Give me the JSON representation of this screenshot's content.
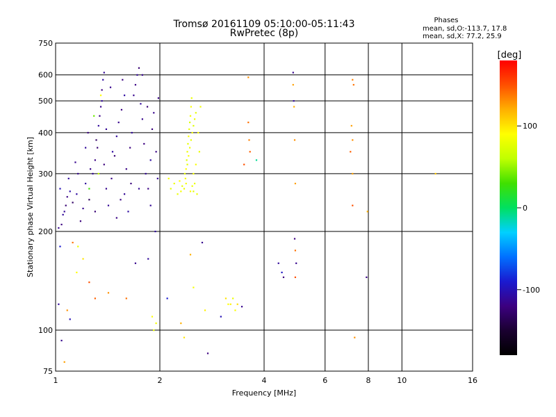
{
  "chart_data": {
    "type": "scatter",
    "title": "Tromsø 20161109 05:10:00-05:11:43",
    "subtitle": "RwPretec (8p)",
    "xlabel": "Frequency [MHz]",
    "ylabel": "Stationary phase Virtual Height [km]",
    "x_scale": "log",
    "y_scale": "log",
    "xlim": [
      1,
      16
    ],
    "ylim": [
      75,
      750
    ],
    "grid": true,
    "x_ticks": [
      1,
      2,
      4,
      6,
      8,
      10,
      16
    ],
    "x_tick_labels": [
      "1",
      "2",
      "4",
      "6",
      "8",
      "10",
      "16"
    ],
    "y_ticks": [
      75,
      100,
      200,
      300,
      400,
      500,
      600,
      750
    ],
    "y_tick_labels": [
      "75",
      "100",
      "200",
      "300",
      "400",
      "500",
      "600",
      "750"
    ],
    "stats": {
      "heading": "Phases",
      "line1": "mean, sd,O:-113.7, 17.8",
      "line2": "mean, sd,X:  77.2, 25.9"
    },
    "colorbar": {
      "label": "[deg]",
      "range": [
        -180,
        180
      ],
      "ticks": [
        100,
        0,
        -100
      ],
      "tick_labels": [
        "100",
        "0",
        "-100"
      ],
      "colors": [
        "#000000",
        "#1a0030",
        "#3c0080",
        "#1a1ad0",
        "#0070ff",
        "#00d0ff",
        "#00e060",
        "#40e000",
        "#c0ff00",
        "#ffff00",
        "#ffb000",
        "#ff5000",
        "#ff0000"
      ]
    },
    "series": [
      {
        "points": [
          [
            1.02,
            205,
            -115
          ],
          [
            1.04,
            210,
            -120
          ],
          [
            1.05,
            225,
            -110
          ],
          [
            1.07,
            240,
            -125
          ],
          [
            1.08,
            255,
            -118
          ],
          [
            1.1,
            265,
            -105
          ],
          [
            1.03,
            270,
            -100
          ],
          [
            1.06,
            230,
            -112
          ],
          [
            1.12,
            245,
            -130
          ],
          [
            1.15,
            260,
            -108
          ],
          [
            1.18,
            215,
            -122
          ],
          [
            1.2,
            235,
            -115
          ],
          [
            1.22,
            280,
            -110
          ],
          [
            1.25,
            250,
            -135
          ],
          [
            1.28,
            300,
            -112
          ],
          [
            1.3,
            330,
            -118
          ],
          [
            1.32,
            360,
            -125
          ],
          [
            1.33,
            420,
            -110
          ],
          [
            1.35,
            480,
            -115
          ],
          [
            1.36,
            540,
            -120
          ],
          [
            1.37,
            580,
            -108
          ],
          [
            1.38,
            610,
            -112
          ],
          [
            1.31,
            380,
            -130
          ],
          [
            1.34,
            450,
            -118
          ],
          [
            1.36,
            500,
            -110
          ],
          [
            1.38,
            320,
            -122
          ],
          [
            1.4,
            270,
            -115
          ],
          [
            1.42,
            240,
            -112
          ],
          [
            1.45,
            290,
            -118
          ],
          [
            1.48,
            340,
            -125
          ],
          [
            1.5,
            390,
            -110
          ],
          [
            1.52,
            430,
            -115
          ],
          [
            1.55,
            470,
            -120
          ],
          [
            1.58,
            260,
            -112
          ],
          [
            1.6,
            310,
            -118
          ],
          [
            1.62,
            230,
            -108
          ],
          [
            1.65,
            280,
            -122
          ],
          [
            1.68,
            520,
            -115
          ],
          [
            1.7,
            560,
            -118
          ],
          [
            1.72,
            600,
            -112
          ],
          [
            1.74,
            630,
            -125
          ],
          [
            1.76,
            490,
            -110
          ],
          [
            1.78,
            440,
            -115
          ],
          [
            1.8,
            370,
            -120
          ],
          [
            1.82,
            300,
            -112
          ],
          [
            1.85,
            270,
            -118
          ],
          [
            1.88,
            330,
            -108
          ],
          [
            1.9,
            410,
            -122
          ],
          [
            1.92,
            460,
            -115
          ],
          [
            1.95,
            350,
            -118
          ],
          [
            1.97,
            290,
            -112
          ],
          [
            1.44,
            550,
            -115
          ],
          [
            1.56,
            580,
            -120
          ],
          [
            1.66,
            400,
            -110
          ],
          [
            1.84,
            480,
            -125
          ],
          [
            1.26,
            310,
            -115
          ],
          [
            1.46,
            350,
            -108
          ],
          [
            1.64,
            360,
            -120
          ],
          [
            1.22,
            360,
            -110
          ],
          [
            1.4,
            410,
            -112
          ],
          [
            1.16,
            300,
            -115
          ],
          [
            1.54,
            250,
            -118
          ],
          [
            1.74,
            270,
            -112
          ],
          [
            1.3,
            230,
            -125
          ],
          [
            1.5,
            220,
            -118
          ],
          [
            1.09,
            290,
            -110
          ],
          [
            1.14,
            325,
            -115
          ],
          [
            1.24,
            400,
            -120
          ],
          [
            1.58,
            520,
            -108
          ],
          [
            1.78,
            600,
            -115
          ],
          [
            1.88,
            240,
            -112
          ],
          [
            1.94,
            200,
            -110
          ],
          [
            1.98,
            510,
            -118
          ],
          [
            1.29,
            450,
            40
          ],
          [
            1.35,
            520,
            90
          ],
          [
            1.33,
            300,
            60
          ],
          [
            1.25,
            270,
            30
          ]
        ]
      },
      {
        "points": [
          [
            2.35,
            270,
            80
          ],
          [
            2.37,
            290,
            85
          ],
          [
            2.38,
            310,
            90
          ],
          [
            2.39,
            330,
            75
          ],
          [
            2.4,
            350,
            82
          ],
          [
            2.41,
            370,
            78
          ],
          [
            2.42,
            390,
            88
          ],
          [
            2.43,
            410,
            80
          ],
          [
            2.44,
            430,
            72
          ],
          [
            2.45,
            450,
            85
          ],
          [
            2.46,
            480,
            90
          ],
          [
            2.47,
            510,
            80
          ],
          [
            2.36,
            300,
            78
          ],
          [
            2.38,
            280,
            84
          ],
          [
            2.4,
            320,
            76
          ],
          [
            2.42,
            340,
            88
          ],
          [
            2.44,
            360,
            82
          ],
          [
            2.46,
            380,
            79
          ],
          [
            2.48,
            400,
            86
          ],
          [
            2.5,
            420,
            74
          ],
          [
            2.52,
            440,
            81
          ],
          [
            2.54,
            460,
            77
          ],
          [
            2.5,
            300,
            85
          ],
          [
            2.52,
            280,
            80
          ],
          [
            2.54,
            320,
            88
          ],
          [
            2.56,
            260,
            82
          ],
          [
            2.3,
            265,
            85
          ],
          [
            2.32,
            275,
            78
          ],
          [
            2.28,
            285,
            90
          ],
          [
            2.25,
            260,
            80
          ],
          [
            2.2,
            280,
            82
          ],
          [
            2.15,
            270,
            78
          ],
          [
            2.12,
            290,
            85
          ],
          [
            2.45,
            265,
            88
          ],
          [
            2.48,
            275,
            82
          ],
          [
            2.5,
            265,
            76
          ],
          [
            2.62,
            480,
            84
          ],
          [
            2.6,
            350,
            80
          ],
          [
            2.58,
            400,
            88
          ]
        ]
      },
      {
        "points": [
          [
            3.6,
            590,
            130
          ],
          [
            3.6,
            430,
            140
          ],
          [
            3.62,
            380,
            135
          ],
          [
            3.64,
            350,
            145
          ],
          [
            3.5,
            320,
            150
          ],
          [
            4.85,
            610,
            -115
          ],
          [
            4.85,
            560,
            125
          ],
          [
            4.87,
            500,
            -110
          ],
          [
            4.88,
            480,
            120
          ],
          [
            4.9,
            380,
            130
          ],
          [
            4.92,
            280,
            125
          ],
          [
            4.9,
            190,
            -120
          ],
          [
            4.92,
            175,
            140
          ],
          [
            4.95,
            160,
            -115
          ],
          [
            4.92,
            145,
            150
          ],
          [
            4.4,
            160,
            -110
          ],
          [
            4.5,
            150,
            -95
          ],
          [
            4.55,
            145,
            -120
          ],
          [
            7.2,
            580,
            135
          ],
          [
            7.25,
            560,
            140
          ],
          [
            7.15,
            420,
            125
          ],
          [
            7.2,
            380,
            130
          ],
          [
            7.1,
            350,
            145
          ],
          [
            7.2,
            300,
            125
          ],
          [
            7.2,
            240,
            150
          ],
          [
            7.3,
            95,
            130
          ],
          [
            7.9,
            145,
            -118
          ],
          [
            7.95,
            230,
            120
          ],
          [
            12.5,
            300,
            110
          ],
          [
            3.8,
            330,
            -10
          ]
        ]
      },
      {
        "points": [
          [
            1.02,
            120,
            -110
          ],
          [
            1.04,
            93,
            -115
          ],
          [
            1.06,
            80,
            125
          ],
          [
            1.08,
            115,
            130
          ],
          [
            1.1,
            108,
            -100
          ],
          [
            1.12,
            185,
            140
          ],
          [
            1.16,
            180,
            80
          ],
          [
            1.2,
            165,
            100
          ],
          [
            1.25,
            140,
            150
          ],
          [
            1.3,
            125,
            145
          ],
          [
            1.42,
            130,
            130
          ],
          [
            1.6,
            125,
            140
          ],
          [
            1.7,
            160,
            -115
          ],
          [
            1.85,
            165,
            -110
          ],
          [
            1.9,
            110,
            90
          ],
          [
            1.92,
            100,
            80
          ],
          [
            1.95,
            105,
            85
          ],
          [
            2.1,
            125,
            -90
          ],
          [
            2.3,
            105,
            120
          ],
          [
            2.35,
            95,
            100
          ],
          [
            2.45,
            170,
            120
          ],
          [
            2.5,
            135,
            85
          ],
          [
            2.65,
            185,
            -115
          ],
          [
            2.7,
            115,
            95
          ],
          [
            2.75,
            85,
            -120
          ],
          [
            3.1,
            125,
            100
          ],
          [
            3.15,
            120,
            90
          ],
          [
            3.2,
            120,
            95
          ],
          [
            3.25,
            125,
            80
          ],
          [
            3.3,
            115,
            88
          ],
          [
            3.35,
            120,
            102
          ],
          [
            3.45,
            118,
            -115
          ],
          [
            3.0,
            110,
            -100
          ],
          [
            1.03,
            180,
            -90
          ],
          [
            1.15,
            150,
            90
          ]
        ]
      }
    ]
  }
}
